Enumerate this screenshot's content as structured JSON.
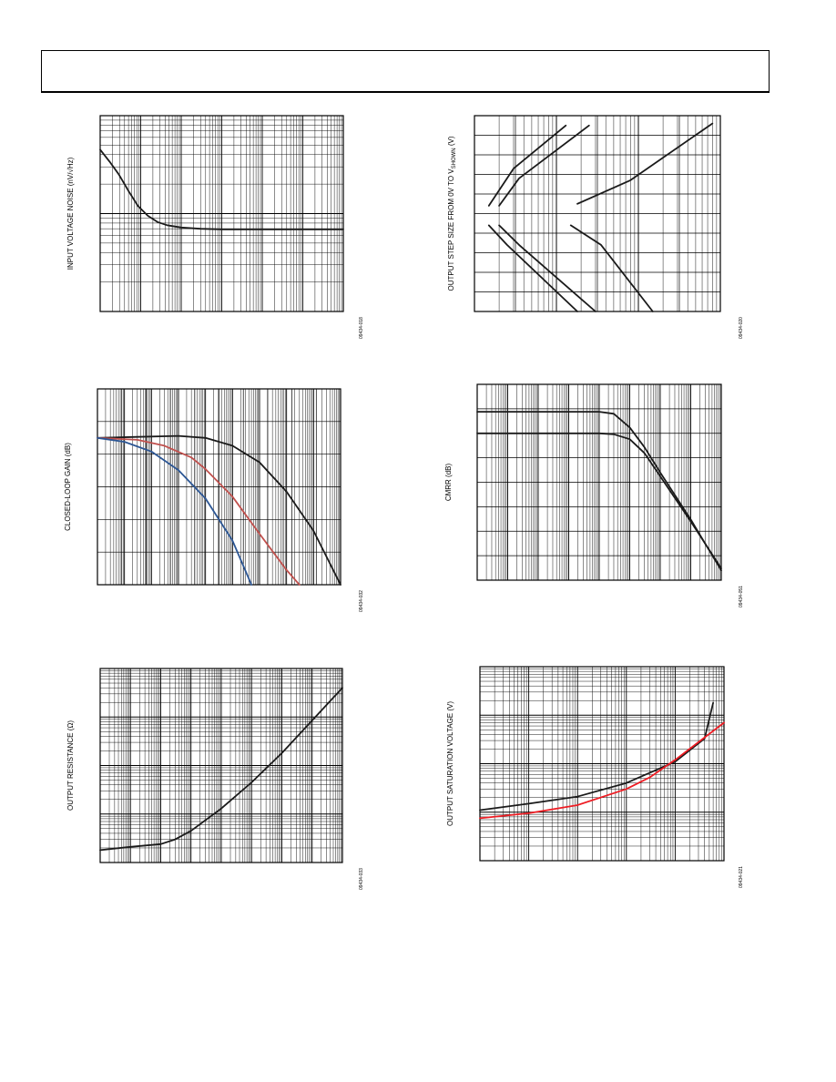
{
  "page": {
    "header_title": ""
  },
  "charts": [
    {
      "id": "noise",
      "chart_data": {
        "type": "line",
        "ylabel": "INPUT VOLTAGE NOISE (nV/√Hz)",
        "xlabel": "",
        "x_scale": "log",
        "xlim": [
          1,
          1000000
        ],
        "ylim": [
          1,
          100
        ],
        "y_scale": "log",
        "figure_code": "09434-018",
        "series": [
          {
            "name": "",
            "color": "#1a1a1a",
            "x": [
              1,
              1.7,
              2.9,
              5,
              8.5,
              15,
              26,
              45,
              100,
              300,
              1000,
              3000,
              10000,
              100000,
              1000000
            ],
            "y": [
              45,
              34,
              25,
              17,
              12,
              9.5,
              8.2,
              7.6,
              7.2,
              7.0,
              6.9,
              6.9,
              6.9,
              6.9,
              6.9
            ]
          }
        ]
      }
    },
    {
      "id": "step",
      "chart_data": {
        "type": "line",
        "ylabel": "OUTPUT STEP SIZE FROM 0V TO V",
        "ylabel_sub": "SHOWN",
        "ylabel_suffix": " (V)",
        "xlabel": "",
        "x_scale": "log",
        "xlim": [
          0.1,
          100
        ],
        "ylim": [
          -5,
          5
        ],
        "figure_code": "09434-020",
        "series": [
          {
            "name": "",
            "color": "#1a1a1a",
            "x": [
              0.15,
              0.3,
              1.3
            ],
            "y": [
              0.4,
              2.3,
              4.5
            ]
          },
          {
            "name": "",
            "color": "#1a1a1a",
            "x": [
              0.2,
              0.35,
              2.5
            ],
            "y": [
              0.4,
              1.8,
              4.5
            ]
          },
          {
            "name": "",
            "color": "#1a1a1a",
            "x": [
              1.8,
              8,
              80
            ],
            "y": [
              0.5,
              1.7,
              4.6
            ]
          },
          {
            "name": "",
            "color": "#1a1a1a",
            "x": [
              0.15,
              0.25,
              1.8
            ],
            "y": [
              -0.6,
              -1.6,
              -5
            ]
          },
          {
            "name": "",
            "color": "#1a1a1a",
            "x": [
              0.2,
              0.35,
              3
            ],
            "y": [
              -0.6,
              -1.6,
              -5
            ]
          },
          {
            "name": "",
            "color": "#1a1a1a",
            "x": [
              1.5,
              3.5,
              15
            ],
            "y": [
              -0.6,
              -1.6,
              -5
            ]
          }
        ]
      }
    },
    {
      "id": "clgain",
      "chart_data": {
        "type": "line",
        "ylabel": "CLOSED-LOOP GAIN (dB)",
        "xlabel": "",
        "x_scale": "log",
        "xlim": [
          1,
          1000000000
        ],
        "ylim": [
          -15,
          5
        ],
        "figure_code": "09434-032",
        "series": [
          {
            "name": "",
            "color": "#1a1a1a",
            "x": [
              1,
              30,
              1000,
              10000,
              100000,
              1000000,
              10000000,
              100000000,
              1000000000
            ],
            "y": [
              0,
              0.1,
              0.2,
              0,
              -0.8,
              -2.5,
              -5.5,
              -9.5,
              -15
            ]
          },
          {
            "name": "",
            "color": "#c0504d",
            "x": [
              1,
              30,
              300,
              3000,
              10000,
              100000,
              1000000,
              10000000,
              30000000
            ],
            "y": [
              0,
              -0.2,
              -0.8,
              -2,
              -3.2,
              -6,
              -9.8,
              -13.5,
              -15
            ]
          },
          {
            "name": "",
            "color": "#2c5694",
            "x": [
              1,
              10,
              100,
              1000,
              10000,
              100000,
              500000
            ],
            "y": [
              0,
              -0.4,
              -1.4,
              -3.3,
              -6.2,
              -10.5,
              -15
            ]
          }
        ]
      }
    },
    {
      "id": "cmrr",
      "chart_data": {
        "type": "line",
        "ylabel": "CMRR (dB)",
        "xlabel": "",
        "x_scale": "log",
        "xlim": [
          1,
          100000000
        ],
        "ylim": [
          0,
          100
        ],
        "figure_code": "09434-051",
        "series": [
          {
            "name": "",
            "color": "#1a1a1a",
            "x": [
              1,
              100,
              10000,
              30000,
              100000,
              300000,
              1000000,
              10000000,
              100000000
            ],
            "y": [
              86,
              86,
              86,
              85,
              78,
              68,
              55,
              31,
              5
            ]
          },
          {
            "name": "",
            "color": "#1a1a1a",
            "x": [
              1,
              100,
              10000,
              30000,
              100000,
              300000,
              1000000,
              10000000,
              100000000
            ],
            "y": [
              75,
              75,
              75,
              74.5,
              72,
              65,
              53,
              30,
              6
            ]
          }
        ]
      }
    },
    {
      "id": "rout",
      "chart_data": {
        "type": "line",
        "ylabel": "OUTPUT RESISTANCE (Ω)",
        "xlabel": "",
        "x_scale": "log",
        "xlim": [
          1,
          100000000
        ],
        "ylim": [
          0.01,
          100
        ],
        "y_scale": "log",
        "figure_code": "09434-033",
        "series": [
          {
            "name": "",
            "color": "#1a1a1a",
            "x": [
              1,
              10,
              100,
              300,
              1000,
              10000,
              100000,
              1000000,
              10000000,
              100000000
            ],
            "y": [
              0.018,
              0.021,
              0.024,
              0.03,
              0.045,
              0.13,
              0.45,
              1.8,
              8.5,
              40
            ]
          }
        ]
      }
    },
    {
      "id": "vsat",
      "chart_data": {
        "type": "line",
        "ylabel": "OUTPUT SATURATION VOLTAGE (V)",
        "xlabel": "",
        "x_scale": "log",
        "xlim": [
          0.001,
          100
        ],
        "ylim": [
          0.001,
          10
        ],
        "y_scale": "log",
        "figure_code": "09434-021",
        "series": [
          {
            "name": "",
            "color": "#1a1a1a",
            "x": [
              0.001,
              0.01,
              0.1,
              1,
              10,
              40,
              60
            ],
            "y": [
              0.011,
              0.015,
              0.021,
              0.04,
              0.11,
              0.33,
              1.8
            ]
          },
          {
            "name": "",
            "color": "#ee1c23",
            "x": [
              0.001,
              0.01,
              0.1,
              1,
              3,
              10,
              100
            ],
            "y": [
              0.0075,
              0.0095,
              0.014,
              0.03,
              0.052,
              0.12,
              0.7
            ]
          }
        ]
      }
    }
  ]
}
